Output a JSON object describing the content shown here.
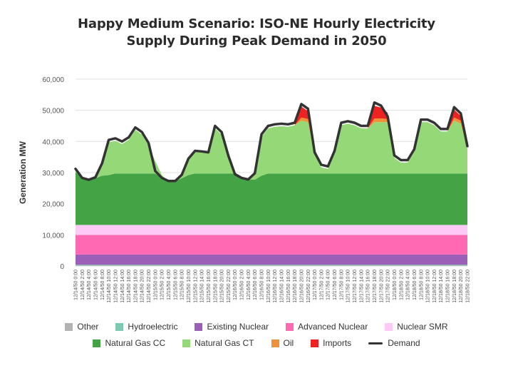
{
  "title_line1": "Happy Medium Scenario: ISO-NE Hourly Electricity",
  "title_line2": "Supply During Peak Demand in 2050",
  "chart_data": {
    "type": "area",
    "title": "Happy Medium Scenario: ISO-NE Hourly Electricity Supply During Peak Demand in 2050",
    "xlabel": "",
    "ylabel": "Generation MW",
    "ylim": [
      0,
      60000
    ],
    "yticks": [
      0,
      10000,
      20000,
      30000,
      40000,
      50000,
      60000
    ],
    "ytick_labels": [
      "0",
      "10,000",
      "20,000",
      "30,000",
      "40,000",
      "50,000",
      "60,000"
    ],
    "x_tick_labels": [
      "12/14/50 0:00",
      "12/14/50 2:00",
      "12/14/50 4:00",
      "12/14/50 6:00",
      "12/14/50 8:00",
      "12/14/50 10:00",
      "12/14/50 12:00",
      "12/14/50 14:00",
      "12/14/50 16:00",
      "12/14/50 18:00",
      "12/14/50 20:00",
      "12/14/50 22:00",
      "12/15/50 0:00",
      "12/15/50 2:00",
      "12/15/50 4:00",
      "12/15/50 6:00",
      "12/15/50 8:00",
      "12/15/50 10:00",
      "12/15/50 12:00",
      "12/15/50 14:00",
      "12/15/50 16:00",
      "12/15/50 18:00",
      "12/15/50 20:00",
      "12/15/50 22:00",
      "12/16/50 0:00",
      "12/16/50 2:00",
      "12/16/50 4:00",
      "12/16/50 6:00",
      "12/16/50 8:00",
      "12/16/50 10:00",
      "12/16/50 12:00",
      "12/16/50 14:00",
      "12/16/50 16:00",
      "12/16/50 18:00",
      "12/16/50 20:00",
      "12/16/50 22:00",
      "12/17/50 0:00",
      "12/17/50 2:00",
      "12/17/50 4:00",
      "12/17/50 6:00",
      "12/17/50 8:00",
      "12/17/50 10:00",
      "12/17/50 12:00",
      "12/17/50 14:00",
      "12/17/50 16:00",
      "12/17/50 18:00",
      "12/17/50 20:00",
      "12/17/50 22:00",
      "12/18/50 0:00",
      "12/18/50 2:00",
      "12/18/50 4:00",
      "12/18/50 6:00",
      "12/18/50 8:00",
      "12/18/50 10:00",
      "12/18/50 12:00",
      "12/18/50 14:00",
      "12/18/50 16:00",
      "12/18/50 18:00",
      "12/18/50 20:00",
      "12/18/50 22:00"
    ],
    "x_points_hours": [
      0,
      2,
      4,
      6,
      8,
      10,
      12,
      14,
      16,
      18,
      20,
      22,
      24,
      26,
      28,
      30,
      32,
      34,
      36,
      38,
      40,
      42,
      44,
      46,
      48,
      50,
      52,
      54,
      56,
      58,
      60,
      62,
      64,
      66,
      68,
      70,
      72,
      74,
      76,
      78,
      80,
      82,
      84,
      86,
      88,
      90,
      92,
      94,
      96,
      98,
      100,
      102,
      104,
      106,
      108,
      110,
      112,
      114,
      116,
      118
    ],
    "series": [
      {
        "name": "Other",
        "color": "#b3b3b3",
        "values": [
          200,
          200,
          200,
          200,
          200,
          200,
          200,
          200,
          200,
          200,
          200,
          200,
          200,
          200,
          200,
          200,
          200,
          200,
          200,
          200,
          200,
          200,
          200,
          200,
          200,
          200,
          200,
          200,
          200,
          200,
          200,
          200,
          200,
          200,
          200,
          200,
          200,
          200,
          200,
          200,
          200,
          200,
          200,
          200,
          200,
          200,
          200,
          200,
          200,
          200,
          200,
          200,
          200,
          200,
          200,
          200,
          200,
          200,
          200,
          200
        ]
      },
      {
        "name": "Hydroelectric",
        "color": "#7fc9b0",
        "values": [
          200,
          200,
          200,
          200,
          200,
          200,
          200,
          200,
          200,
          200,
          200,
          200,
          200,
          200,
          200,
          200,
          200,
          200,
          200,
          200,
          200,
          200,
          200,
          200,
          200,
          200,
          200,
          200,
          200,
          200,
          200,
          200,
          200,
          200,
          200,
          200,
          200,
          200,
          200,
          200,
          200,
          200,
          200,
          200,
          200,
          200,
          200,
          200,
          200,
          200,
          200,
          200,
          200,
          200,
          200,
          200,
          200,
          200,
          200,
          200
        ]
      },
      {
        "name": "Existing Nuclear",
        "color": "#9b5fb8",
        "values": [
          3300,
          3300,
          3300,
          3300,
          3300,
          3300,
          3300,
          3300,
          3300,
          3300,
          3300,
          3300,
          3300,
          3300,
          3300,
          3300,
          3300,
          3300,
          3300,
          3300,
          3300,
          3300,
          3300,
          3300,
          3300,
          3300,
          3300,
          3300,
          3300,
          3300,
          3300,
          3300,
          3300,
          3300,
          3300,
          3300,
          3300,
          3300,
          3300,
          3300,
          3300,
          3300,
          3300,
          3300,
          3300,
          3300,
          3300,
          3300,
          3300,
          3300,
          3300,
          3300,
          3300,
          3300,
          3300,
          3300,
          3300,
          3300,
          3300,
          3300
        ]
      },
      {
        "name": "Advanced Nuclear",
        "color": "#ff69b4",
        "values": [
          6300,
          6300,
          6300,
          6300,
          6300,
          6300,
          6300,
          6300,
          6300,
          6300,
          6300,
          6300,
          6300,
          6300,
          6300,
          6300,
          6300,
          6300,
          6300,
          6300,
          6300,
          6300,
          6300,
          6300,
          6300,
          6300,
          6300,
          6300,
          6300,
          6300,
          6300,
          6300,
          6300,
          6300,
          6300,
          6300,
          6300,
          6300,
          6300,
          6300,
          6300,
          6300,
          6300,
          6300,
          6300,
          6300,
          6300,
          6300,
          6300,
          6300,
          6300,
          6300,
          6300,
          6300,
          6300,
          6300,
          6300,
          6300,
          6300,
          6300
        ]
      },
      {
        "name": "Nuclear SMR",
        "color": "#fccaf5",
        "values": [
          3200,
          3200,
          3200,
          3200,
          3200,
          3200,
          3200,
          3200,
          3200,
          3200,
          3200,
          3200,
          3200,
          3200,
          3200,
          3200,
          3200,
          3200,
          3200,
          3200,
          3200,
          3200,
          3200,
          3200,
          3200,
          3200,
          3200,
          3200,
          3200,
          3200,
          3200,
          3200,
          3200,
          3200,
          3200,
          3200,
          3200,
          3200,
          3200,
          3200,
          3200,
          3200,
          3200,
          3200,
          3200,
          3200,
          3200,
          3200,
          3200,
          3200,
          3200,
          3200,
          3200,
          3200,
          3200,
          3200,
          3200,
          3200,
          3200,
          3200
        ]
      },
      {
        "name": "Natural Gas CC",
        "color": "#44a345",
        "values": [
          17000,
          15000,
          14500,
          15000,
          15800,
          16000,
          16500,
          16500,
          16500,
          16500,
          16500,
          16500,
          16500,
          15000,
          14000,
          14000,
          15000,
          16000,
          16500,
          16500,
          16500,
          16500,
          16500,
          16500,
          16500,
          15000,
          14500,
          14500,
          15800,
          16500,
          16500,
          16500,
          16500,
          16500,
          16500,
          16500,
          16500,
          16500,
          16500,
          16500,
          16500,
          16500,
          16500,
          16500,
          16500,
          16500,
          16500,
          16500,
          16500,
          16500,
          16500,
          16500,
          16500,
          16500,
          16500,
          16500,
          16500,
          16500,
          16500,
          16500
        ]
      },
      {
        "name": "Natural Gas CT",
        "color": "#95d877",
        "values": [
          1000,
          0,
          0,
          0,
          4000,
          10500,
          10500,
          9500,
          10800,
          14000,
          12500,
          9000,
          4000,
          1000,
          0,
          0,
          1000,
          5000,
          7000,
          6800,
          6500,
          14500,
          12500,
          5000,
          500,
          0,
          0,
          2000,
          12500,
          14500,
          15000,
          15200,
          15000,
          15500,
          17000,
          16500,
          6000,
          2000,
          1500,
          6500,
          15500,
          16000,
          15500,
          14500,
          14500,
          16500,
          16500,
          16500,
          5000,
          3500,
          3500,
          7000,
          16500,
          16500,
          15500,
          13500,
          13500,
          17000,
          16000,
          8000
        ]
      },
      {
        "name": "Oil",
        "color": "#f0913a",
        "values": [
          0,
          0,
          0,
          0,
          0,
          0,
          0,
          0,
          0,
          0,
          0,
          0,
          0,
          0,
          0,
          0,
          0,
          0,
          0,
          0,
          0,
          0,
          0,
          0,
          0,
          0,
          0,
          0,
          0,
          0,
          0,
          0,
          0,
          0,
          1000,
          1000,
          0,
          0,
          0,
          0,
          0,
          0,
          0,
          0,
          0,
          1200,
          1200,
          1000,
          0,
          0,
          0,
          0,
          0,
          0,
          0,
          0,
          0,
          1000,
          1000,
          0
        ]
      },
      {
        "name": "Imports",
        "color": "#ee2222",
        "values": [
          0,
          0,
          0,
          0,
          0,
          0,
          0,
          0,
          0,
          0,
          0,
          0,
          0,
          0,
          0,
          0,
          0,
          0,
          0,
          0,
          0,
          0,
          0,
          0,
          0,
          0,
          0,
          0,
          0,
          0,
          0,
          0,
          0,
          0,
          3500,
          2500,
          0,
          0,
          0,
          0,
          0,
          0,
          0,
          0,
          0,
          4000,
          3500,
          2000,
          0,
          0,
          0,
          0,
          0,
          0,
          0,
          0,
          0,
          2500,
          1500,
          0
        ]
      }
    ],
    "demand": {
      "name": "Demand",
      "color": "#333333",
      "values": [
        31200,
        28300,
        27700,
        28500,
        33000,
        40500,
        41000,
        40000,
        41300,
        44500,
        43000,
        39500,
        30500,
        28300,
        27300,
        27300,
        29300,
        34500,
        37000,
        36800,
        36500,
        45000,
        43000,
        35500,
        29500,
        28300,
        27800,
        29800,
        42300,
        45000,
        45500,
        45700,
        45500,
        46000,
        52000,
        50500,
        36500,
        32500,
        32000,
        37000,
        46000,
        46500,
        46000,
        45000,
        45000,
        52500,
        51500,
        48000,
        35500,
        34000,
        34000,
        37500,
        47000,
        47000,
        46000,
        44000,
        44000,
        51000,
        49000,
        38500
      ]
    },
    "legend": [
      {
        "label": "Other",
        "color": "#b3b3b3",
        "kind": "area"
      },
      {
        "label": "Hydroelectric",
        "color": "#7fc9b0",
        "kind": "area"
      },
      {
        "label": "Existing Nuclear",
        "color": "#9b5fb8",
        "kind": "area"
      },
      {
        "label": "Advanced Nuclear",
        "color": "#ff69b4",
        "kind": "area"
      },
      {
        "label": "Nuclear SMR",
        "color": "#fccaf5",
        "kind": "area"
      },
      {
        "label": "Natural Gas CC",
        "color": "#44a345",
        "kind": "area"
      },
      {
        "label": "Natural Gas CT",
        "color": "#95d877",
        "kind": "area"
      },
      {
        "label": "Oil",
        "color": "#f0913a",
        "kind": "area"
      },
      {
        "label": "Imports",
        "color": "#ee2222",
        "kind": "area"
      },
      {
        "label": "Demand",
        "color": "#333333",
        "kind": "line"
      }
    ],
    "grid": true,
    "legend_position": "bottom"
  }
}
